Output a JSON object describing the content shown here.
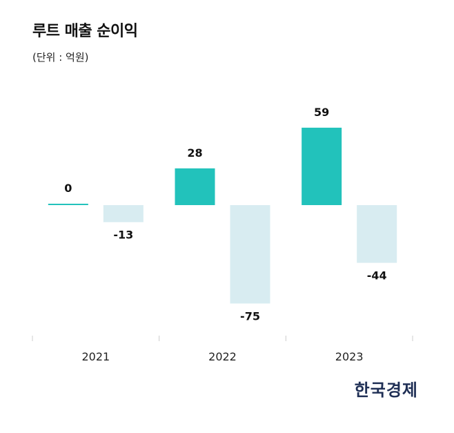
{
  "title": "루트 매출 순이익",
  "unit_label": "(단위 : 억원)",
  "source": "한국경제",
  "colors": {
    "revenue": "#22c2bb",
    "net_income": "#d8ecf1",
    "axis": "#cccccc",
    "text": "#111111"
  },
  "chart_data": {
    "type": "bar",
    "title": "루트 매출 순이익",
    "ylabel": "억원",
    "xlabel": "",
    "categories": [
      "2021",
      "2022",
      "2023"
    ],
    "series": [
      {
        "name": "매출",
        "values": [
          0,
          28,
          59
        ]
      },
      {
        "name": "순이익",
        "values": [
          -13,
          -75,
          -44
        ]
      }
    ],
    "value_labels": {
      "매출": [
        "0",
        "28",
        "59"
      ],
      "순이익": [
        "-13",
        "-75",
        "-44"
      ]
    },
    "ylim": [
      -90,
      90
    ],
    "grid": false,
    "legend": "none"
  }
}
